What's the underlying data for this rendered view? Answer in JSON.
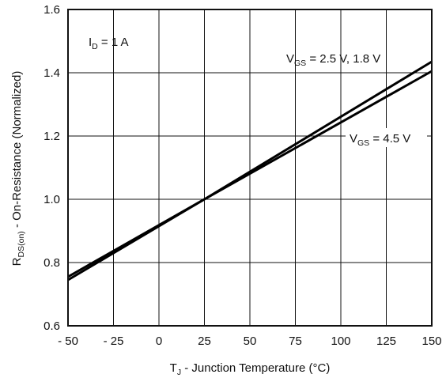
{
  "chart_data": {
    "type": "line",
    "xlabel": {
      "main": "T",
      "sub": "J",
      "rest": " - Junction Temperature (°C)"
    },
    "ylabel": {
      "main": "R",
      "sub": "DS(on)",
      "rest": " - On-Resistance (Normalized)"
    },
    "xlim": [
      -50,
      150
    ],
    "ylim": [
      0.6,
      1.6
    ],
    "xticks": [
      -50,
      -25,
      0,
      25,
      50,
      75,
      100,
      125,
      150
    ],
    "xtick_labels": [
      "- 50",
      "- 25",
      "0",
      "25",
      "50",
      "75",
      "100",
      "125",
      "150"
    ],
    "yticks": [
      0.6,
      0.8,
      1.0,
      1.2,
      1.4,
      1.6
    ],
    "ytick_labels": [
      "0.6",
      "0.8",
      "1.0",
      "1.2",
      "1.4",
      "1.6"
    ],
    "grid": true,
    "series": [
      {
        "name": "VGS = 2.5 V, 1.8 V",
        "x": [
          -50,
          25,
          150
        ],
        "y": [
          0.745,
          1.0,
          1.435
        ]
      },
      {
        "name": "VGS = 4.5 V",
        "x": [
          -50,
          25,
          150
        ],
        "y": [
          0.755,
          1.0,
          1.405
        ]
      }
    ],
    "annotations": {
      "condition": {
        "main": "I",
        "sub": "D",
        "rest": " = 1 A"
      },
      "series1_label": {
        "main": "V",
        "sub": "GS",
        "rest": " = 2.5 V, 1.8 V"
      },
      "series2_label": {
        "main": "V",
        "sub": "GS",
        "rest": " = 4.5 V"
      }
    }
  }
}
